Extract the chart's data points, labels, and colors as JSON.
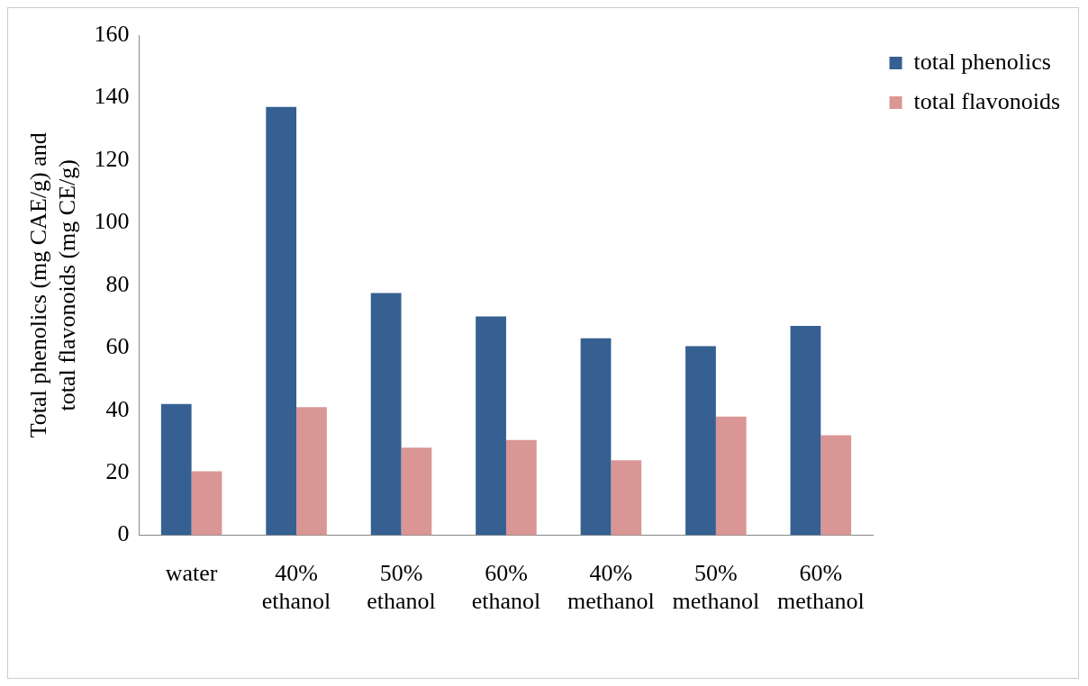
{
  "chart_data": {
    "type": "bar",
    "ylabel": "Total phenolics (mg CAE/g) and total flavonoids (mg CE/g)",
    "categories": [
      "water",
      "40% ethanol",
      "50% ethanol",
      "60% ethanol",
      "40% methanol",
      "50% methanol",
      "60% methanol"
    ],
    "series": [
      {
        "name": "total phenolics",
        "color": "#356091",
        "values": [
          42,
          137,
          77.5,
          70,
          63,
          60.5,
          67
        ]
      },
      {
        "name": "total flavonoids",
        "color": "#d99694",
        "values": [
          20.5,
          41,
          28,
          30.5,
          24,
          38,
          32
        ]
      }
    ],
    "ylim": [
      0,
      160
    ],
    "yticks": [
      0,
      20,
      40,
      60,
      80,
      100,
      120,
      140,
      160
    ],
    "grid": false,
    "legend": "top right"
  }
}
